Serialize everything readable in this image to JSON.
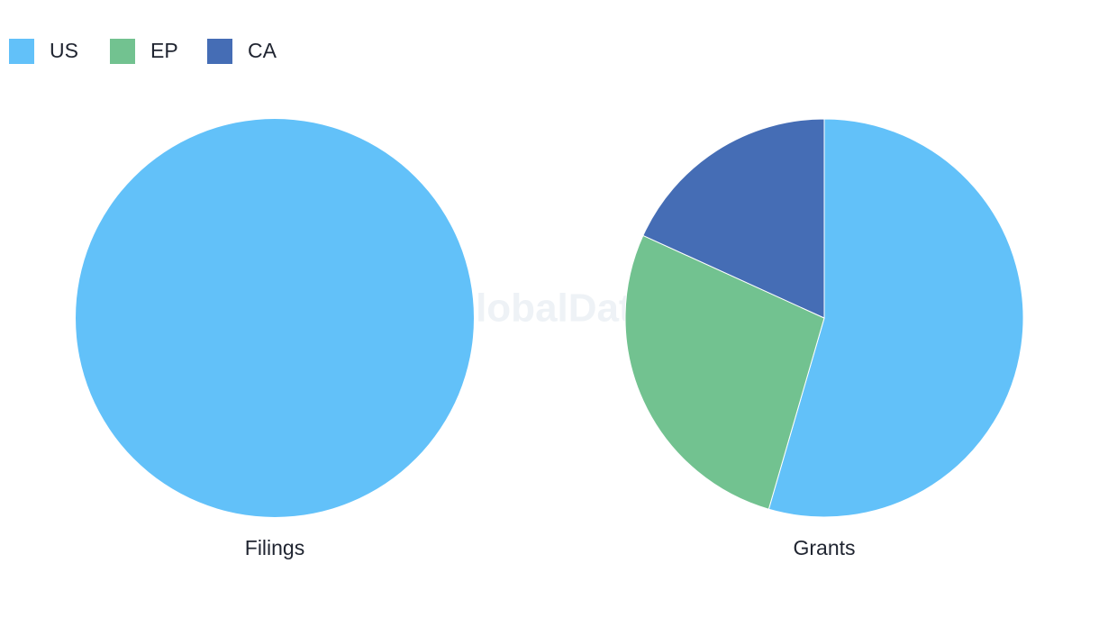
{
  "watermark": "GlobalData",
  "chart_data": [
    {
      "type": "pie",
      "title": "Filings",
      "categories": [
        "US",
        "EP",
        "CA"
      ],
      "colors": [
        "#62c1f9",
        "#72c290",
        "#456db5"
      ],
      "values": [
        100,
        0,
        0
      ]
    },
    {
      "type": "pie",
      "title": "Grants",
      "categories": [
        "US",
        "EP",
        "CA"
      ],
      "colors": [
        "#62c1f9",
        "#72c290",
        "#456db5"
      ],
      "values": [
        54.5,
        27.3,
        18.2
      ]
    }
  ]
}
